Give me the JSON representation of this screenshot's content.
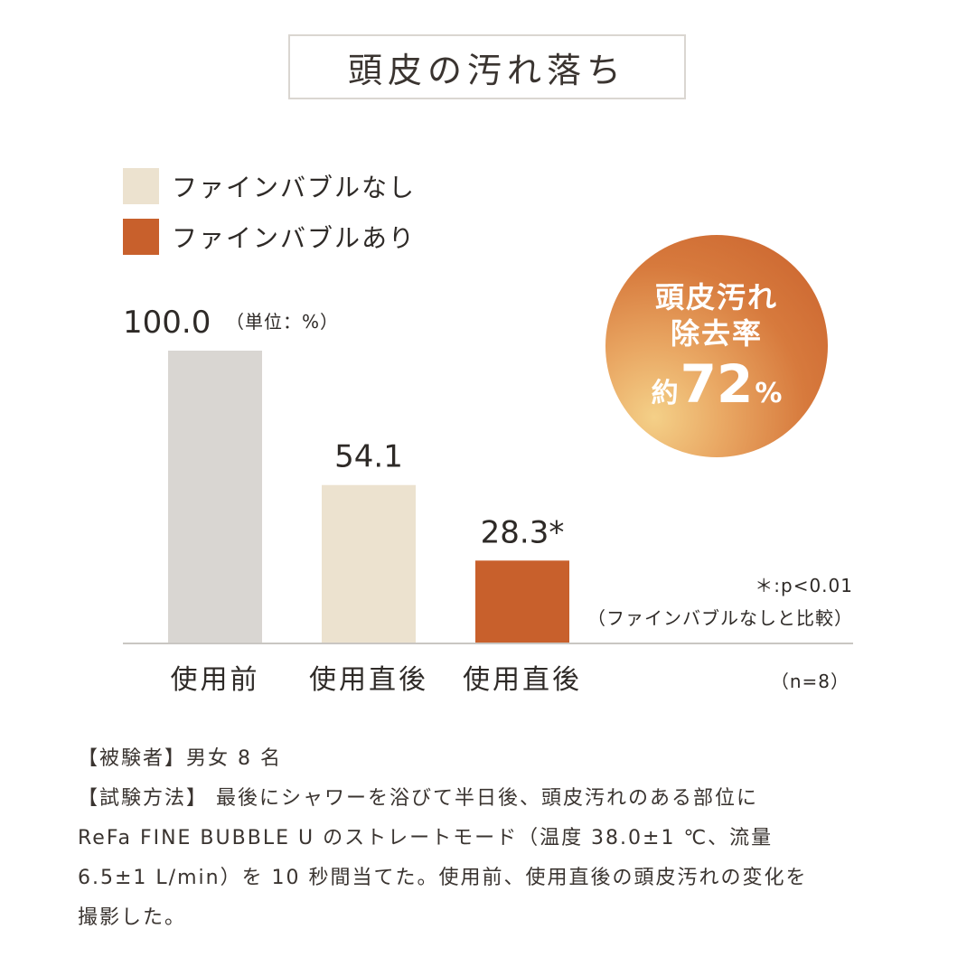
{
  "title": "頭皮の汚れ落ち",
  "legend": [
    {
      "label": "ファインバブルなし",
      "color": "#ece2cf"
    },
    {
      "label": "ファインバブルあり",
      "color": "#c8602c"
    }
  ],
  "badge": {
    "line1": "頭皮汚れ",
    "line2": "除去率",
    "prefix": "約",
    "value": "72",
    "suffix": "%"
  },
  "unit_note": "（単位：%）",
  "significance_note": "＊:p<0.01",
  "comparison_note": "（ファインバブルなしと比較）",
  "n_note": "（n=8）",
  "chart_data": {
    "type": "bar",
    "title": "頭皮の汚れ落ち",
    "categories": [
      "使用前",
      "使用直後",
      "使用直後"
    ],
    "values": [
      100.0,
      54.1,
      28.3
    ],
    "labels": [
      "100.0",
      "54.1",
      "28.3*"
    ],
    "colors": [
      "#d9d6d2",
      "#ece2cf",
      "#c8602c"
    ],
    "series_groups": [
      "",
      "ファインバブルなし",
      "ファインバブルあり"
    ],
    "ylim": [
      0,
      100
    ],
    "unit": "%",
    "xlabel": "",
    "ylabel": ""
  },
  "footer": {
    "line1": "【被験者】男女 8 名",
    "line2": "【試験方法】 最後にシャワーを浴びて半日後、頭皮汚れのある部位に",
    "line3": "ReFa FINE BUBBLE U のストレートモード（温度 38.0±1 ℃、流量",
    "line4": "6.5±1 L/min）を 10 秒間当てた。使用前、使用直後の頭皮汚れの変化を",
    "line5": "撮影した。"
  }
}
